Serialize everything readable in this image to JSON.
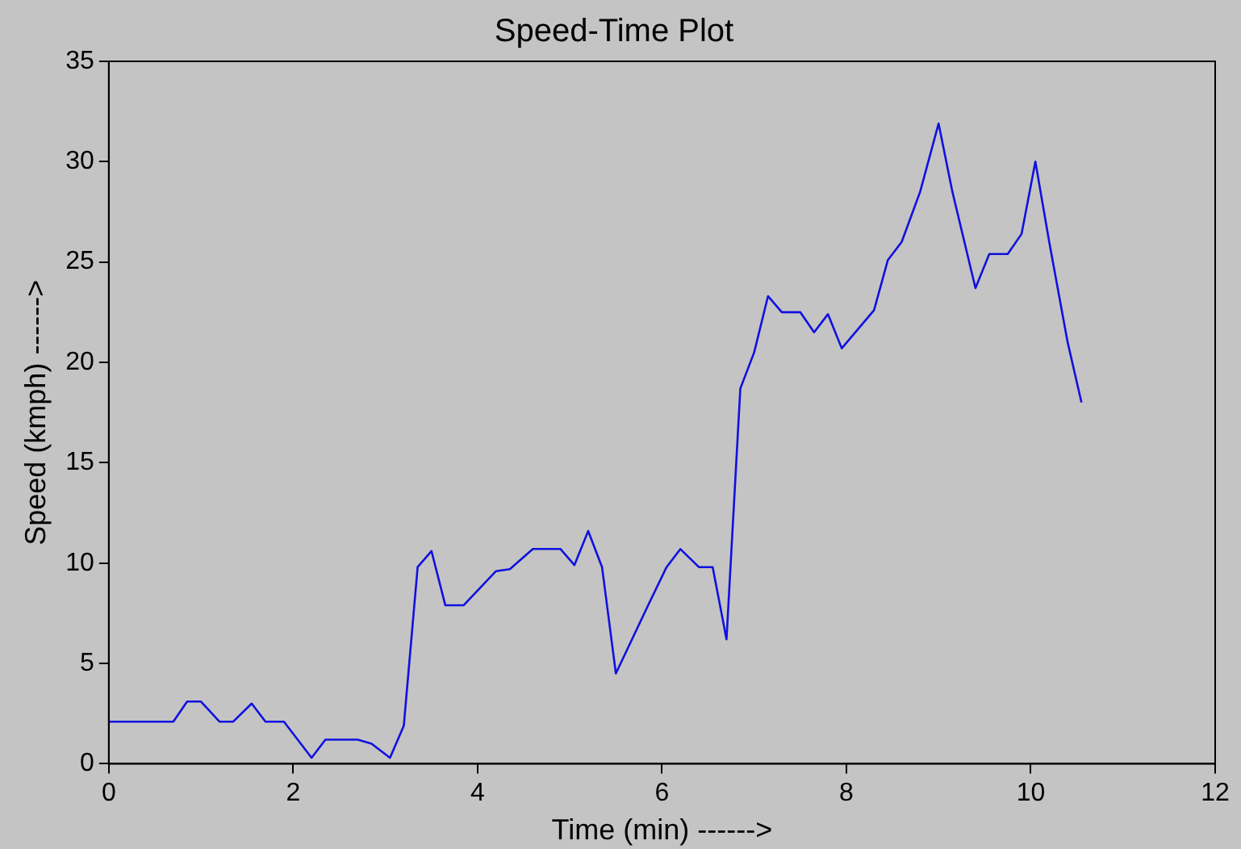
{
  "chart_data": {
    "type": "line",
    "title": "Speed-Time Plot",
    "xlabel": "Time (min) ------>",
    "ylabel": "Speed (kmph) ------>",
    "x": [
      0,
      0.7,
      0.85,
      1.0,
      1.2,
      1.35,
      1.55,
      1.7,
      1.9,
      2.2,
      2.35,
      2.7,
      2.85,
      3.05,
      3.2,
      3.35,
      3.5,
      3.65,
      3.85,
      4.2,
      4.35,
      4.6,
      4.9,
      5.05,
      5.2,
      5.35,
      5.5,
      5.85,
      6.05,
      6.2,
      6.4,
      6.55,
      6.7,
      6.85,
      7.0,
      7.15,
      7.3,
      7.5,
      7.65,
      7.8,
      7.95,
      8.3,
      8.45,
      8.6,
      8.8,
      9.0,
      9.15,
      9.4,
      9.55,
      9.75,
      9.9,
      10.05,
      10.2,
      10.4,
      10.55
    ],
    "series": [
      {
        "color": "#1010e0",
        "values": [
          2.1,
          2.1,
          3.1,
          3.1,
          2.1,
          2.1,
          3.0,
          2.1,
          2.1,
          0.3,
          1.2,
          1.2,
          1.0,
          0.3,
          1.9,
          9.8,
          10.6,
          7.9,
          7.9,
          9.6,
          9.7,
          10.7,
          10.7,
          9.9,
          11.6,
          9.8,
          4.5,
          7.9,
          9.8,
          10.7,
          9.8,
          9.8,
          6.2,
          18.7,
          20.5,
          23.3,
          22.5,
          22.5,
          21.5,
          22.4,
          20.7,
          22.6,
          25.1,
          26.0,
          28.5,
          31.9,
          28.5,
          23.7,
          25.4,
          25.4,
          26.4,
          30.0,
          26.0,
          21.0,
          18.0
        ]
      }
    ],
    "xlim": [
      0,
      12
    ],
    "xticks": [
      0,
      2,
      4,
      6,
      8,
      10,
      12
    ],
    "ylim": [
      0,
      35
    ],
    "yticks": [
      0,
      5,
      10,
      15,
      20,
      25,
      30,
      35
    ],
    "grid": false,
    "legend": false,
    "marker": "none",
    "line_style": "solid"
  }
}
